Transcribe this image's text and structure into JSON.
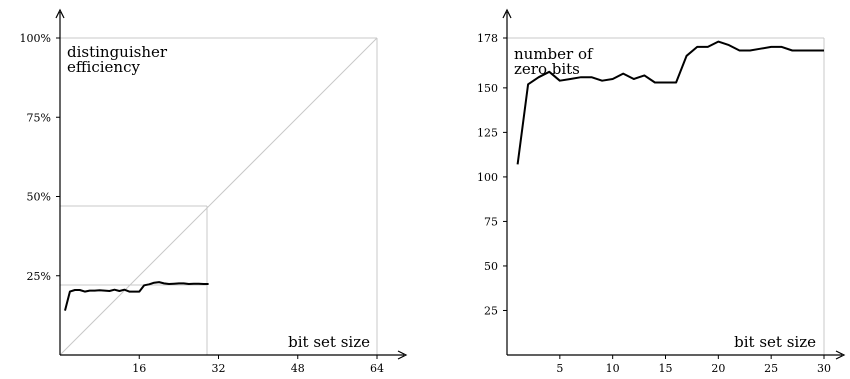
{
  "chart_data": [
    {
      "type": "line",
      "annotation": "distinguisher\nefficiency",
      "xlabel": "bit set size",
      "xlim": [
        0,
        64
      ],
      "ylim": [
        0,
        100
      ],
      "xticks": [
        16,
        32,
        48,
        64
      ],
      "yticks": [
        25,
        50,
        75,
        100
      ],
      "ytick_labels": [
        "25%",
        "50%",
        "75%",
        "100%"
      ],
      "diagonal": [
        [
          0,
          0
        ],
        [
          64,
          100
        ]
      ],
      "reference_box": {
        "x_max": 30,
        "y_top": 47,
        "y_mid": 22
      },
      "series": [
        {
          "x": [
            1,
            2,
            3,
            4,
            5,
            6,
            7,
            8,
            9,
            10,
            11,
            12,
            13,
            14,
            15,
            16,
            17,
            18,
            19,
            20,
            21,
            22,
            23,
            24,
            25,
            26,
            27,
            28,
            29,
            30
          ],
          "values": [
            14,
            20,
            20.5,
            20.5,
            20,
            20.3,
            20.3,
            20.4,
            20.3,
            20.2,
            20.6,
            20.2,
            20.6,
            20,
            20,
            20,
            22,
            22.3,
            22.8,
            23,
            22.6,
            22.4,
            22.5,
            22.6,
            22.6,
            22.4,
            22.5,
            22.5,
            22.4,
            22.4
          ]
        }
      ]
    },
    {
      "type": "line",
      "annotation": "number of\nzero bits",
      "xlabel": "bit set size",
      "xlim": [
        0,
        30
      ],
      "ylim": [
        0,
        178
      ],
      "xticks": [
        5,
        10,
        15,
        20,
        25,
        30
      ],
      "yticks": [
        25,
        50,
        75,
        100,
        125,
        150,
        178
      ],
      "series": [
        {
          "x": [
            1,
            2,
            3,
            4,
            5,
            6,
            7,
            8,
            9,
            10,
            11,
            12,
            13,
            14,
            15,
            16,
            17,
            18,
            19,
            20,
            21,
            22,
            23,
            24,
            25,
            26,
            27,
            28,
            29,
            30
          ],
          "values": [
            107,
            152,
            156,
            159,
            154,
            155,
            156,
            156,
            154,
            155,
            158,
            155,
            157,
            153,
            153,
            153,
            168,
            173,
            173,
            176,
            174,
            171,
            171,
            172,
            173,
            173,
            171,
            171,
            171,
            171
          ]
        }
      ]
    }
  ]
}
